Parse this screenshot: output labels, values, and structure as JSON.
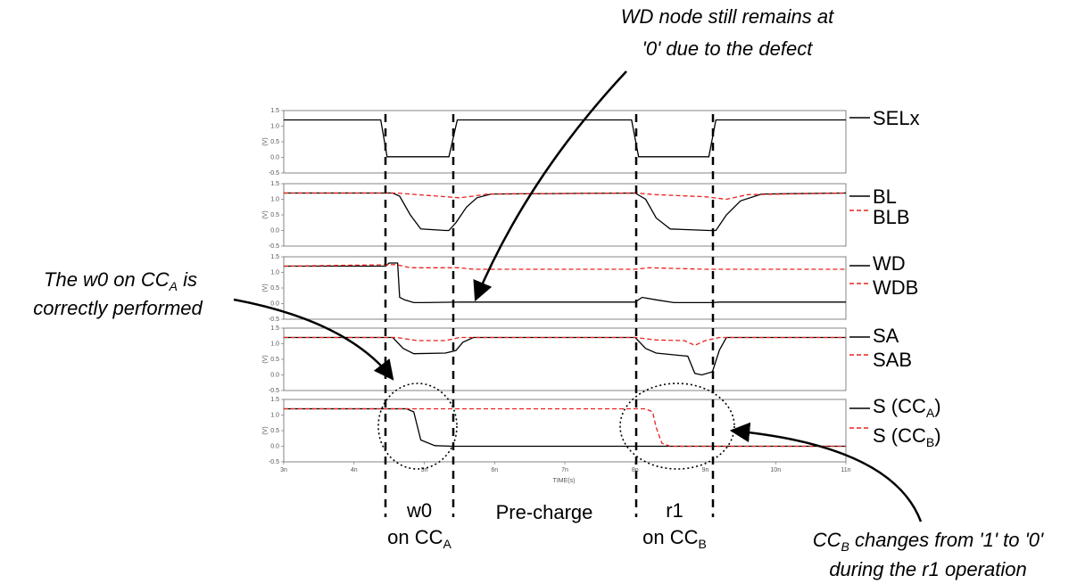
{
  "chart_data": {
    "type": "line",
    "x_unit": "ns",
    "xlabel": "TIME(s)",
    "xlim": [
      3,
      11
    ],
    "x_ticks": [
      "3n",
      "4n",
      "5n",
      "6n",
      "7n",
      "8n",
      "9n",
      "10n",
      "11n"
    ],
    "ylim": [
      -0.5,
      1.5
    ],
    "y_ticks": [
      "1.5",
      "1.0",
      "0.5",
      "0.0",
      "-0.5"
    ],
    "y_unit": "(V)",
    "panels": [
      {
        "series": [
          {
            "name": "SELx",
            "style": "solid",
            "color": "#000000",
            "x": [
              3,
              4.38,
              4.47,
              5.35,
              5.47,
              7.95,
              8.05,
              9.05,
              9.15,
              11
            ],
            "y": [
              1.2,
              1.2,
              0.02,
              0.02,
              1.2,
              1.2,
              0.02,
              0.02,
              1.2,
              1.2
            ]
          }
        ]
      },
      {
        "series": [
          {
            "name": "BL",
            "style": "solid",
            "color": "#000000",
            "x": [
              3,
              4.55,
              4.65,
              4.8,
              4.95,
              5.3,
              5.35,
              5.45,
              5.6,
              5.75,
              5.95,
              8.0,
              8.15,
              8.3,
              8.5,
              9.05,
              9.15,
              9.3,
              9.5,
              9.8,
              11
            ],
            "y": [
              1.2,
              1.2,
              1.1,
              0.5,
              0.05,
              0.0,
              0.0,
              0.25,
              0.75,
              1.05,
              1.17,
              1.2,
              1.0,
              0.4,
              0.05,
              0.0,
              0.0,
              0.5,
              0.95,
              1.17,
              1.2
            ]
          },
          {
            "name": "BLB",
            "style": "dashed",
            "color": "#e8231e",
            "x": [
              3,
              4.6,
              4.9,
              5.5,
              5.7,
              5.9,
              8.0,
              8.3,
              9.0,
              9.3,
              9.6,
              11
            ],
            "y": [
              1.2,
              1.2,
              1.15,
              1.05,
              1.1,
              1.17,
              1.2,
              1.15,
              1.08,
              1.0,
              1.15,
              1.2
            ]
          }
        ]
      },
      {
        "series": [
          {
            "name": "WD",
            "style": "solid",
            "color": "#000000",
            "x": [
              3,
              4.45,
              4.5,
              4.62,
              4.65,
              4.72,
              4.85,
              5.0,
              5.5,
              8.0,
              8.1,
              8.3,
              8.55,
              9.1,
              9.2,
              11
            ],
            "y": [
              1.2,
              1.2,
              1.3,
              1.3,
              0.2,
              0.12,
              0.03,
              0.03,
              0.05,
              0.05,
              0.2,
              0.12,
              0.03,
              0.03,
              0.05,
              0.05
            ]
          },
          {
            "name": "WDB",
            "style": "dashed",
            "color": "#e8231e",
            "x": [
              3,
              4.6,
              4.8,
              5.5,
              5.7,
              8.0,
              8.2,
              9.0,
              9.2,
              11
            ],
            "y": [
              1.2,
              1.25,
              1.15,
              1.15,
              1.1,
              1.1,
              1.15,
              1.1,
              1.1,
              1.1
            ]
          }
        ]
      },
      {
        "series": [
          {
            "name": "SA",
            "style": "solid",
            "color": "#000000",
            "x": [
              3,
              4.55,
              4.7,
              4.85,
              5.3,
              5.45,
              5.55,
              5.7,
              8.0,
              8.15,
              8.3,
              8.75,
              8.85,
              8.95,
              9.1,
              9.2,
              9.3,
              11
            ],
            "y": [
              1.2,
              1.2,
              0.85,
              0.68,
              0.7,
              0.78,
              1.05,
              1.2,
              1.2,
              0.85,
              0.7,
              0.6,
              0.05,
              0.0,
              0.1,
              0.8,
              1.2,
              1.2
            ]
          },
          {
            "name": "SAB",
            "style": "dashed",
            "color": "#e8231e",
            "x": [
              3,
              4.6,
              4.9,
              5.3,
              5.5,
              8.0,
              8.3,
              8.7,
              8.85,
              9.0,
              9.2,
              11
            ],
            "y": [
              1.2,
              1.2,
              1.1,
              1.1,
              1.2,
              1.2,
              1.12,
              1.1,
              0.95,
              1.1,
              1.2,
              1.2
            ]
          }
        ]
      },
      {
        "series": [
          {
            "name": "S (CC_A)",
            "style": "solid",
            "color": "#000000",
            "x": [
              3,
              4.45,
              4.75,
              4.85,
              4.95,
              5.15,
              5.4,
              11
            ],
            "y": [
              1.2,
              1.2,
              1.2,
              1.1,
              0.2,
              0.02,
              0.0,
              0.0
            ]
          },
          {
            "name": "S (CC_B)",
            "style": "dashed",
            "color": "#e8231e",
            "x": [
              3,
              8.15,
              8.25,
              8.3,
              8.38,
              8.5,
              11
            ],
            "y": [
              1.2,
              1.2,
              1.1,
              0.6,
              0.1,
              0.0,
              0.0
            ]
          }
        ]
      }
    ]
  },
  "signal_labels": [
    {
      "main": "SELx",
      "sub": "",
      "after": ""
    },
    {
      "main": "BL",
      "sub": "",
      "after": ""
    },
    {
      "main": "BLB",
      "sub": "",
      "after": ""
    },
    {
      "main": "WD",
      "sub": "",
      "after": ""
    },
    {
      "main": "WDB",
      "sub": "",
      "after": ""
    },
    {
      "main": "SA",
      "sub": "",
      "after": ""
    },
    {
      "main": "SAB",
      "sub": "",
      "after": ""
    },
    {
      "main": "S (CC",
      "sub": "A",
      "after": ")"
    },
    {
      "main": "S (CC",
      "sub": "B",
      "after": ")"
    }
  ],
  "phases": {
    "w0_line1": "w0",
    "w0_line2": "on CC",
    "w0_sub": "A",
    "precharge": "Pre-charge",
    "r1_line1": "r1",
    "r1_line2": "on CC",
    "r1_sub": "B"
  },
  "annotations": {
    "wd_line1": "WD node still remains at",
    "wd_line2": "'0' due to the defect",
    "w0_line1_pre": "The w0 on CC",
    "w0_line1_sub": "A",
    "w0_line1_post": " is",
    "w0_line2": "correctly performed",
    "ccb_line1_pre": "CC",
    "ccb_line1_sub": "B",
    "ccb_line1_post": " changes from '1' to '0'",
    "ccb_line2": "during the r1 operation"
  }
}
